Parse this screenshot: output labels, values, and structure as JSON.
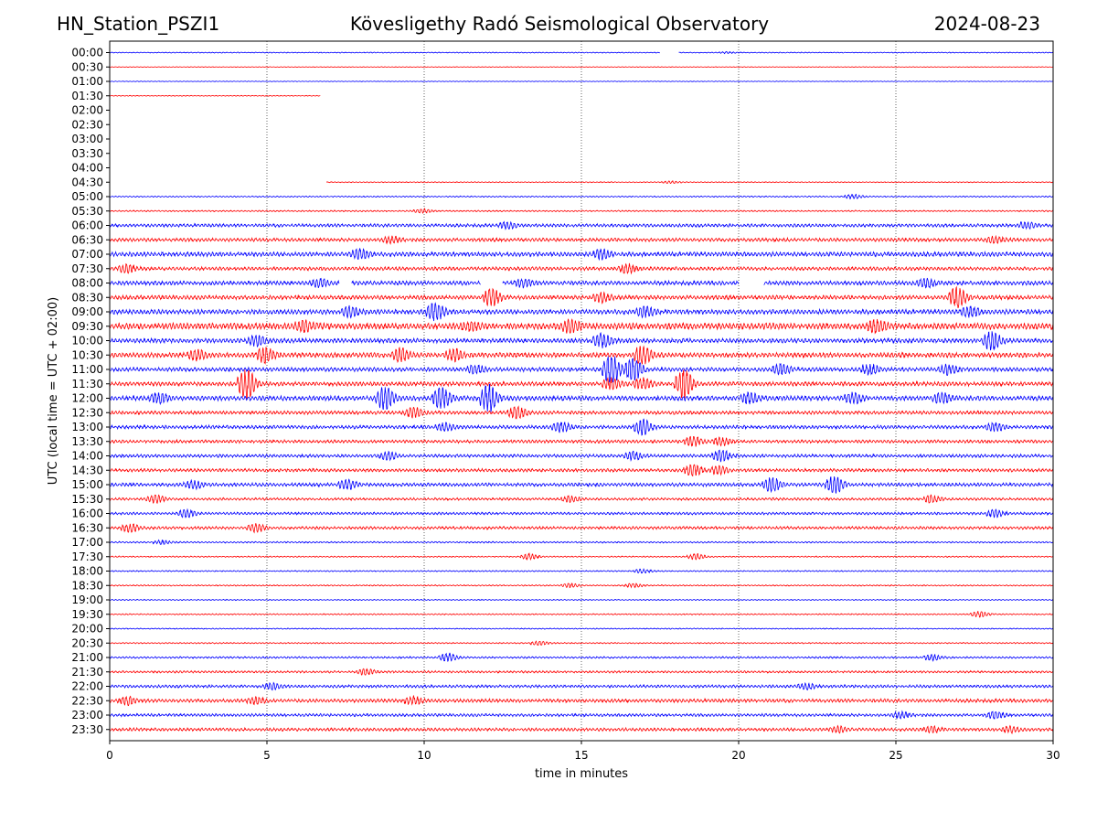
{
  "header": {
    "station": "HN_Station_PSZI1",
    "observatory": "Kövesligethy Radó Seismological Observatory",
    "date": "2024-08-23"
  },
  "chart_data": {
    "type": "line",
    "title": "Kövesligethy Radó Seismological Observatory",
    "xlabel": "time in minutes",
    "ylabel": "UTC (local time = UTC + 02:00)",
    "xlim": [
      0,
      30
    ],
    "x_ticks": [
      "0",
      "5",
      "10",
      "15",
      "20",
      "25",
      "30"
    ],
    "x_tick_values": [
      0,
      5,
      10,
      15,
      20,
      25,
      30
    ],
    "grid": "vertical dotted lines at x = 5, 10, 15, 20, 25",
    "colors": {
      "even_rows": "#0000ff",
      "odd_rows": "#ff0000"
    },
    "rows": [
      {
        "label": "00:00",
        "segments": [
          [
            0,
            17.5
          ],
          [
            18.1,
            30
          ]
        ],
        "amp": 0.6,
        "events": [
          [
            19.5,
            0.8
          ]
        ]
      },
      {
        "label": "00:30",
        "segments": [
          [
            0,
            30
          ]
        ],
        "amp": 0.4,
        "events": []
      },
      {
        "label": "01:00",
        "segments": [
          [
            0,
            30
          ]
        ],
        "amp": 0.4,
        "events": []
      },
      {
        "label": "01:30",
        "segments": [
          [
            0,
            6.7
          ]
        ],
        "amp": 0.5,
        "events": []
      },
      {
        "label": "02:00",
        "segments": [],
        "amp": 0,
        "events": []
      },
      {
        "label": "02:30",
        "segments": [],
        "amp": 0,
        "events": []
      },
      {
        "label": "03:00",
        "segments": [],
        "amp": 0,
        "events": []
      },
      {
        "label": "03:30",
        "segments": [],
        "amp": 0,
        "events": []
      },
      {
        "label": "04:00",
        "segments": [],
        "amp": 0,
        "events": []
      },
      {
        "label": "04:30",
        "segments": [
          [
            6.9,
            30
          ]
        ],
        "amp": 0.6,
        "events": [
          [
            17.7,
            1.2
          ]
        ]
      },
      {
        "label": "05:00",
        "segments": [
          [
            0,
            30
          ]
        ],
        "amp": 0.8,
        "events": [
          [
            23.5,
            2.5
          ]
        ]
      },
      {
        "label": "05:30",
        "segments": [
          [
            0,
            30
          ]
        ],
        "amp": 0.9,
        "events": [
          [
            9.8,
            2
          ]
        ]
      },
      {
        "label": "06:00",
        "segments": [
          [
            0,
            30
          ]
        ],
        "amp": 2,
        "events": [
          [
            12.5,
            3
          ],
          [
            29,
            3
          ]
        ]
      },
      {
        "label": "06:30",
        "segments": [
          [
            0,
            30
          ]
        ],
        "amp": 2.2,
        "events": [
          [
            8.8,
            3
          ],
          [
            28,
            3
          ]
        ]
      },
      {
        "label": "07:00",
        "segments": [
          [
            0,
            30
          ]
        ],
        "amp": 2.8,
        "events": [
          [
            7.8,
            5
          ],
          [
            15.5,
            5
          ]
        ]
      },
      {
        "label": "07:30",
        "segments": [
          [
            0,
            30
          ]
        ],
        "amp": 2.2,
        "events": [
          [
            16.3,
            5
          ],
          [
            0.4,
            4
          ]
        ]
      },
      {
        "label": "08:00",
        "segments": [
          [
            0,
            7.3
          ],
          [
            7.7,
            11.8
          ],
          [
            12.5,
            20
          ],
          [
            20.8,
            30
          ]
        ],
        "amp": 2.6,
        "events": [
          [
            6.5,
            4
          ],
          [
            13,
            4
          ],
          [
            25.8,
            4
          ]
        ]
      },
      {
        "label": "08:30",
        "segments": [
          [
            0,
            30
          ]
        ],
        "amp": 2.6,
        "events": [
          [
            12,
            9
          ],
          [
            26.8,
            11
          ],
          [
            15.5,
            5
          ]
        ]
      },
      {
        "label": "09:00",
        "segments": [
          [
            0,
            30
          ]
        ],
        "amp": 3,
        "events": [
          [
            10.2,
            9
          ],
          [
            7.5,
            5
          ],
          [
            16.9,
            5
          ],
          [
            27.2,
            5
          ]
        ]
      },
      {
        "label": "09:30",
        "segments": [
          [
            0,
            30
          ]
        ],
        "amp": 4,
        "events": [
          [
            14.5,
            6
          ],
          [
            24.2,
            6
          ],
          [
            6,
            5
          ],
          [
            11.3,
            4
          ]
        ]
      },
      {
        "label": "10:00",
        "segments": [
          [
            0,
            30
          ]
        ],
        "amp": 2.8,
        "events": [
          [
            15.5,
            7
          ],
          [
            27.9,
            10
          ],
          [
            4.5,
            5
          ]
        ]
      },
      {
        "label": "10:30",
        "segments": [
          [
            0,
            30
          ]
        ],
        "amp": 3,
        "events": [
          [
            4.8,
            8
          ],
          [
            9.1,
            7
          ],
          [
            10.8,
            6
          ],
          [
            16.8,
            10
          ],
          [
            2.6,
            5
          ]
        ]
      },
      {
        "label": "11:00",
        "segments": [
          [
            0,
            30
          ]
        ],
        "amp": 2.6,
        "events": [
          [
            15.8,
            16
          ],
          [
            16.5,
            12
          ],
          [
            11.5,
            4
          ],
          [
            21.2,
            5
          ],
          [
            24,
            5
          ],
          [
            26.5,
            5
          ]
        ]
      },
      {
        "label": "11:30",
        "segments": [
          [
            0,
            30
          ]
        ],
        "amp": 2.6,
        "events": [
          [
            4.2,
            16
          ],
          [
            18.1,
            16
          ],
          [
            15.8,
            6
          ],
          [
            16.8,
            6
          ]
        ]
      },
      {
        "label": "12:00",
        "segments": [
          [
            0,
            30
          ]
        ],
        "amp": 3,
        "events": [
          [
            8.6,
            12
          ],
          [
            10.4,
            11
          ],
          [
            11.9,
            15
          ],
          [
            1.4,
            5
          ],
          [
            20.2,
            5
          ],
          [
            23.5,
            5
          ],
          [
            26.3,
            5
          ]
        ]
      },
      {
        "label": "12:30",
        "segments": [
          [
            0,
            30
          ]
        ],
        "amp": 2.2,
        "events": [
          [
            12.8,
            6
          ],
          [
            9.5,
            5
          ]
        ]
      },
      {
        "label": "13:00",
        "segments": [
          [
            0,
            30
          ]
        ],
        "amp": 2.2,
        "events": [
          [
            16.8,
            8
          ],
          [
            14.2,
            5
          ],
          [
            10.5,
            4
          ],
          [
            28,
            4
          ]
        ]
      },
      {
        "label": "13:30",
        "segments": [
          [
            0,
            30
          ]
        ],
        "amp": 2,
        "events": [
          [
            18.4,
            5
          ],
          [
            19.3,
            4
          ]
        ]
      },
      {
        "label": "14:00",
        "segments": [
          [
            0,
            30
          ]
        ],
        "amp": 2,
        "events": [
          [
            19.3,
            6
          ],
          [
            16.5,
            4
          ],
          [
            8.7,
            4
          ]
        ]
      },
      {
        "label": "14:30",
        "segments": [
          [
            0,
            30
          ]
        ],
        "amp": 2,
        "events": [
          [
            18.4,
            6
          ],
          [
            19.2,
            4
          ]
        ]
      },
      {
        "label": "15:00",
        "segments": [
          [
            0,
            30
          ]
        ],
        "amp": 2.2,
        "events": [
          [
            22.9,
            9
          ],
          [
            20.9,
            8
          ],
          [
            7.4,
            5
          ],
          [
            2.5,
            4
          ]
        ]
      },
      {
        "label": "15:30",
        "segments": [
          [
            0,
            30
          ]
        ],
        "amp": 1.6,
        "events": [
          [
            1.3,
            4
          ],
          [
            14.5,
            3
          ],
          [
            26,
            4
          ]
        ]
      },
      {
        "label": "16:00",
        "segments": [
          [
            0,
            30
          ]
        ],
        "amp": 1.6,
        "events": [
          [
            2.3,
            4
          ],
          [
            28,
            4
          ]
        ]
      },
      {
        "label": "16:30",
        "segments": [
          [
            0,
            30
          ]
        ],
        "amp": 1.8,
        "events": [
          [
            0.5,
            4
          ],
          [
            4.5,
            4
          ]
        ]
      },
      {
        "label": "17:00",
        "segments": [
          [
            0,
            30
          ]
        ],
        "amp": 1,
        "events": [
          [
            1.5,
            2
          ]
        ]
      },
      {
        "label": "17:30",
        "segments": [
          [
            0,
            30
          ]
        ],
        "amp": 0.8,
        "events": [
          [
            13.2,
            3
          ],
          [
            18.5,
            3
          ]
        ]
      },
      {
        "label": "18:00",
        "segments": [
          [
            0,
            30
          ]
        ],
        "amp": 0.8,
        "events": [
          [
            16.8,
            2
          ]
        ]
      },
      {
        "label": "18:30",
        "segments": [
          [
            0,
            30
          ]
        ],
        "amp": 0.8,
        "events": [
          [
            16.5,
            2
          ],
          [
            14.5,
            2
          ]
        ]
      },
      {
        "label": "19:00",
        "segments": [
          [
            0,
            30
          ]
        ],
        "amp": 0.7,
        "events": []
      },
      {
        "label": "19:30",
        "segments": [
          [
            0,
            30
          ]
        ],
        "amp": 0.8,
        "events": [
          [
            27.5,
            3
          ]
        ]
      },
      {
        "label": "20:00",
        "segments": [
          [
            0,
            30
          ]
        ],
        "amp": 0.7,
        "events": []
      },
      {
        "label": "20:30",
        "segments": [
          [
            0,
            30
          ]
        ],
        "amp": 0.8,
        "events": [
          [
            13.5,
            2
          ]
        ]
      },
      {
        "label": "21:00",
        "segments": [
          [
            0,
            30
          ]
        ],
        "amp": 1.2,
        "events": [
          [
            10.6,
            4
          ],
          [
            26,
            3
          ]
        ]
      },
      {
        "label": "21:30",
        "segments": [
          [
            0,
            30
          ]
        ],
        "amp": 1.4,
        "events": [
          [
            8,
            3
          ]
        ]
      },
      {
        "label": "22:00",
        "segments": [
          [
            0,
            30
          ]
        ],
        "amp": 1.8,
        "events": [
          [
            5,
            3
          ],
          [
            22,
            3
          ]
        ]
      },
      {
        "label": "22:30",
        "segments": [
          [
            0,
            30
          ]
        ],
        "amp": 2.2,
        "events": [
          [
            0.4,
            4
          ],
          [
            9.5,
            4
          ],
          [
            4.5,
            3
          ]
        ]
      },
      {
        "label": "23:00",
        "segments": [
          [
            0,
            30
          ]
        ],
        "amp": 1.8,
        "events": [
          [
            25,
            3
          ],
          [
            28,
            3
          ]
        ]
      },
      {
        "label": "23:30",
        "segments": [
          [
            0,
            30
          ]
        ],
        "amp": 2,
        "events": [
          [
            23,
            3
          ],
          [
            26,
            3
          ],
          [
            28.5,
            3
          ]
        ]
      }
    ]
  }
}
